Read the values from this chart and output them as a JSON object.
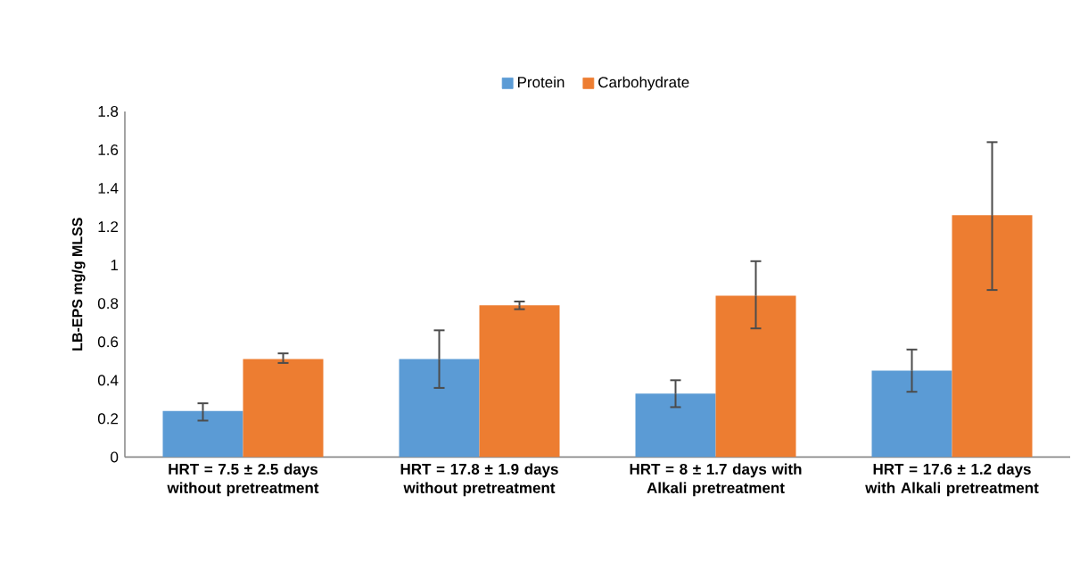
{
  "chart_data": {
    "type": "bar",
    "ylabel": "LB-EPS mg/g MLSS",
    "categories": [
      "HRT = 7.5 ± 2.5 days without pretreatment",
      "HRT = 17.8 ± 1.9 days without pretreatment",
      "HRT = 8 ± 1.7 days with Alkali pretreatment",
      "HRT = 17.6 ± 1.2 days with Alkali pretreatment"
    ],
    "series": [
      {
        "name": "Protein",
        "color": "#5b9bd5",
        "values": [
          0.24,
          0.51,
          0.33,
          0.45
        ],
        "errors": [
          [
            0.19,
            0.28
          ],
          [
            0.36,
            0.66
          ],
          [
            0.26,
            0.4
          ],
          [
            0.34,
            0.56
          ]
        ]
      },
      {
        "name": "Carbohydrate",
        "color": "#ed7d31",
        "values": [
          0.51,
          0.79,
          0.84,
          1.26
        ],
        "errors": [
          [
            0.49,
            0.54
          ],
          [
            0.77,
            0.81
          ],
          [
            0.67,
            1.02
          ],
          [
            0.87,
            1.64
          ]
        ]
      }
    ],
    "ylim": [
      0,
      1.8
    ],
    "yticks": [
      0,
      0.2,
      0.4,
      0.6,
      0.8,
      1,
      1.2,
      1.4,
      1.6,
      1.8
    ],
    "grid": false,
    "legend": "top"
  }
}
